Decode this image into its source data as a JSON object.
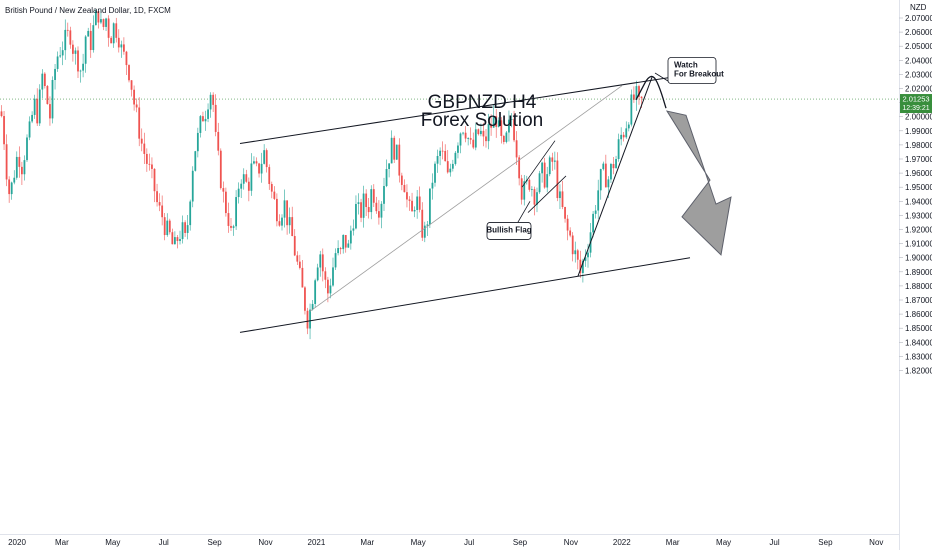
{
  "header": {
    "symbol": "British Pound / New Zealand Dollar, 1D, FXCM"
  },
  "chart_data": {
    "type": "candlestick",
    "title_line1": "GBPNZD H4",
    "title_line2": "Forex Solution",
    "currency": "NZD",
    "y_ticks": [
      "2.07000",
      "2.06000",
      "2.05000",
      "2.04000",
      "2.03000",
      "2.02000",
      "2.01000",
      "2.00000",
      "1.99000",
      "1.98000",
      "1.97000",
      "1.96000",
      "1.95000",
      "1.94000",
      "1.93000",
      "1.92000",
      "1.91000",
      "1.90000",
      "1.89000",
      "1.88000",
      "1.87000",
      "1.86000",
      "1.85000",
      "1.84000",
      "1.83000",
      "1.82000"
    ],
    "x_ticks": [
      "2020",
      "Mar",
      "May",
      "Jul",
      "Sep",
      "Nov",
      "2021",
      "Mar",
      "May",
      "Jul",
      "Sep",
      "Nov",
      "2022",
      "Mar",
      "May",
      "Jul",
      "Sep",
      "Nov"
    ],
    "last_price": "2.01253",
    "countdown": "12:39:21",
    "price_colors": {
      "up": "#26a69a",
      "down": "#ef5350",
      "last": "#388e3c"
    },
    "path": [
      [
        0,
        2.01
      ],
      [
        4,
        1.985
      ],
      [
        8,
        1.95
      ],
      [
        10,
        1.944
      ],
      [
        14,
        1.96
      ],
      [
        18,
        1.975
      ],
      [
        22,
        1.965
      ],
      [
        26,
        1.98
      ],
      [
        30,
        1.99
      ],
      [
        34,
        2.01
      ],
      [
        38,
        2.0
      ],
      [
        42,
        2.03
      ],
      [
        46,
        2.015
      ],
      [
        50,
        2.0
      ],
      [
        54,
        2.03
      ],
      [
        58,
        2.045
      ],
      [
        62,
        2.05
      ],
      [
        66,
        2.055
      ],
      [
        70,
        2.06
      ],
      [
        74,
        2.045
      ],
      [
        78,
        2.04
      ],
      [
        82,
        2.03
      ],
      [
        86,
        2.06
      ],
      [
        90,
        2.05
      ],
      [
        94,
        2.065
      ],
      [
        98,
        2.075
      ],
      [
        102,
        2.06
      ],
      [
        106,
        2.07
      ],
      [
        110,
        2.055
      ],
      [
        114,
        2.065
      ],
      [
        118,
        2.06
      ],
      [
        122,
        2.045
      ],
      [
        126,
        2.04
      ],
      [
        130,
        2.03
      ],
      [
        134,
        2.01
      ],
      [
        138,
        1.995
      ],
      [
        142,
        1.98
      ],
      [
        146,
        1.97
      ],
      [
        150,
        1.96
      ],
      [
        154,
        1.95
      ],
      [
        158,
        1.935
      ],
      [
        162,
        1.93
      ],
      [
        166,
        1.92
      ],
      [
        170,
        1.915
      ],
      [
        174,
        1.905
      ],
      [
        178,
        1.915
      ],
      [
        182,
        1.92
      ],
      [
        186,
        1.91
      ],
      [
        190,
        1.945
      ],
      [
        194,
        1.975
      ],
      [
        198,
        1.985
      ],
      [
        202,
        2.0
      ],
      [
        206,
        2.005
      ],
      [
        210,
        2.02
      ],
      [
        213,
        2.01
      ],
      [
        216,
        1.98
      ],
      [
        220,
        1.96
      ],
      [
        224,
        1.94
      ],
      [
        228,
        1.93
      ],
      [
        232,
        1.912
      ],
      [
        236,
        1.935
      ],
      [
        240,
        1.96
      ],
      [
        244,
        1.955
      ],
      [
        248,
        1.95
      ],
      [
        252,
        1.965
      ],
      [
        256,
        1.96
      ],
      [
        260,
        1.965
      ],
      [
        264,
        1.975
      ],
      [
        268,
        1.96
      ],
      [
        272,
        1.945
      ],
      [
        276,
        1.935
      ],
      [
        280,
        1.93
      ],
      [
        284,
        1.94
      ],
      [
        288,
        1.925
      ],
      [
        292,
        1.915
      ],
      [
        296,
        1.9
      ],
      [
        300,
        1.885
      ],
      [
        304,
        1.87
      ],
      [
        308,
        1.855
      ],
      [
        312,
        1.87
      ],
      [
        316,
        1.895
      ],
      [
        320,
        1.905
      ],
      [
        324,
        1.885
      ],
      [
        328,
        1.875
      ],
      [
        332,
        1.89
      ],
      [
        336,
        1.905
      ],
      [
        340,
        1.9
      ],
      [
        344,
        1.915
      ],
      [
        348,
        1.905
      ],
      [
        352,
        1.925
      ],
      [
        356,
        1.935
      ],
      [
        360,
        1.93
      ],
      [
        364,
        1.94
      ],
      [
        368,
        1.935
      ],
      [
        372,
        1.95
      ],
      [
        376,
        1.94
      ],
      [
        380,
        1.935
      ],
      [
        384,
        1.955
      ],
      [
        388,
        1.97
      ],
      [
        392,
        1.98
      ],
      [
        396,
        1.975
      ],
      [
        400,
        1.96
      ],
      [
        404,
        1.955
      ],
      [
        408,
        1.935
      ],
      [
        412,
        1.93
      ],
      [
        416,
        1.945
      ],
      [
        420,
        1.925
      ],
      [
        424,
        1.915
      ],
      [
        428,
        1.93
      ],
      [
        432,
        1.955
      ],
      [
        436,
        1.965
      ],
      [
        440,
        1.975
      ],
      [
        444,
        1.97
      ],
      [
        448,
        1.955
      ],
      [
        452,
        1.97
      ],
      [
        456,
        1.98
      ],
      [
        460,
        1.99
      ],
      [
        464,
        1.995
      ],
      [
        468,
        1.985
      ],
      [
        472,
        1.975
      ],
      [
        476,
        1.985
      ],
      [
        480,
        1.99
      ],
      [
        484,
        1.98
      ],
      [
        488,
        1.99
      ],
      [
        492,
        1.995
      ],
      [
        496,
        2.0
      ],
      [
        500,
        1.985
      ],
      [
        504,
        1.975
      ],
      [
        508,
        1.99
      ],
      [
        512,
        2.0
      ],
      [
        516,
        1.98
      ],
      [
        520,
        1.96
      ],
      [
        522,
        1.945
      ],
      [
        526,
        1.95
      ],
      [
        530,
        1.955
      ],
      [
        534,
        1.945
      ],
      [
        538,
        1.95
      ],
      [
        542,
        1.96
      ],
      [
        546,
        1.955
      ],
      [
        550,
        1.965
      ],
      [
        554,
        1.97
      ],
      [
        558,
        1.945
      ],
      [
        562,
        1.935
      ],
      [
        566,
        1.92
      ],
      [
        570,
        1.915
      ],
      [
        574,
        1.905
      ],
      [
        578,
        1.895
      ],
      [
        580,
        1.888
      ],
      [
        584,
        1.9
      ],
      [
        588,
        1.91
      ],
      [
        592,
        1.925
      ],
      [
        596,
        1.94
      ],
      [
        600,
        1.955
      ],
      [
        604,
        1.96
      ],
      [
        608,
        1.955
      ],
      [
        612,
        1.965
      ],
      [
        616,
        1.97
      ],
      [
        620,
        1.985
      ],
      [
        624,
        1.99
      ],
      [
        628,
        2.0
      ],
      [
        632,
        2.01
      ],
      [
        636,
        2.015
      ],
      [
        640,
        2.005
      ],
      [
        642,
        2.012
      ]
    ],
    "pattern_lines": [
      {
        "name": "upper-channel-line",
        "x1": 240,
        "p1": 1.981,
        "x2": 690,
        "p2": 2.03,
        "color": "#131722",
        "width": 1
      },
      {
        "name": "lower-channel-line",
        "x1": 240,
        "p1": 1.847,
        "x2": 690,
        "p2": 1.9,
        "color": "#131722",
        "width": 1
      },
      {
        "name": "old-trend-line",
        "x1": 310,
        "p1": 1.862,
        "x2": 622,
        "p2": 2.022,
        "color": "#9e9e9e",
        "width": 0.8
      },
      {
        "name": "rising-trend-line",
        "x1": 578,
        "p1": 1.887,
        "x2": 652,
        "p2": 2.028,
        "color": "#131722",
        "width": 1
      },
      {
        "name": "flag-upper-line",
        "x1": 522,
        "p1": 1.95,
        "x2": 555,
        "p2": 1.983,
        "color": "#131722",
        "width": 0.8
      },
      {
        "name": "flag-lower-line",
        "x1": 528,
        "p1": 1.932,
        "x2": 566,
        "p2": 1.958,
        "color": "#131722",
        "width": 0.8
      }
    ],
    "projection_curve": [
      [
        636,
        2.012
      ],
      [
        642,
        2.02
      ],
      [
        648,
        2.028
      ],
      [
        654,
        2.029
      ],
      [
        660,
        2.02
      ],
      [
        666,
        2.006
      ]
    ],
    "arrow_polygon": [
      [
        667,
        2.004
      ],
      [
        710,
        1.955
      ],
      [
        682,
        1.929
      ],
      [
        721,
        1.902
      ],
      [
        731,
        1.943
      ],
      [
        716,
        1.938
      ],
      [
        686,
        2.001
      ]
    ],
    "callouts": [
      {
        "name": "bullish-flag",
        "line1": "Bullish Flag",
        "line2": "",
        "box_x": 487,
        "box_p": 1.925,
        "ptr_x": 530,
        "ptr_p": 1.94
      },
      {
        "name": "watch-breakout",
        "line1": "Watch",
        "line2": "For Breakout",
        "box_x": 668,
        "box_p": 2.042,
        "ptr_x": 655,
        "ptr_p": 2.031
      }
    ]
  }
}
